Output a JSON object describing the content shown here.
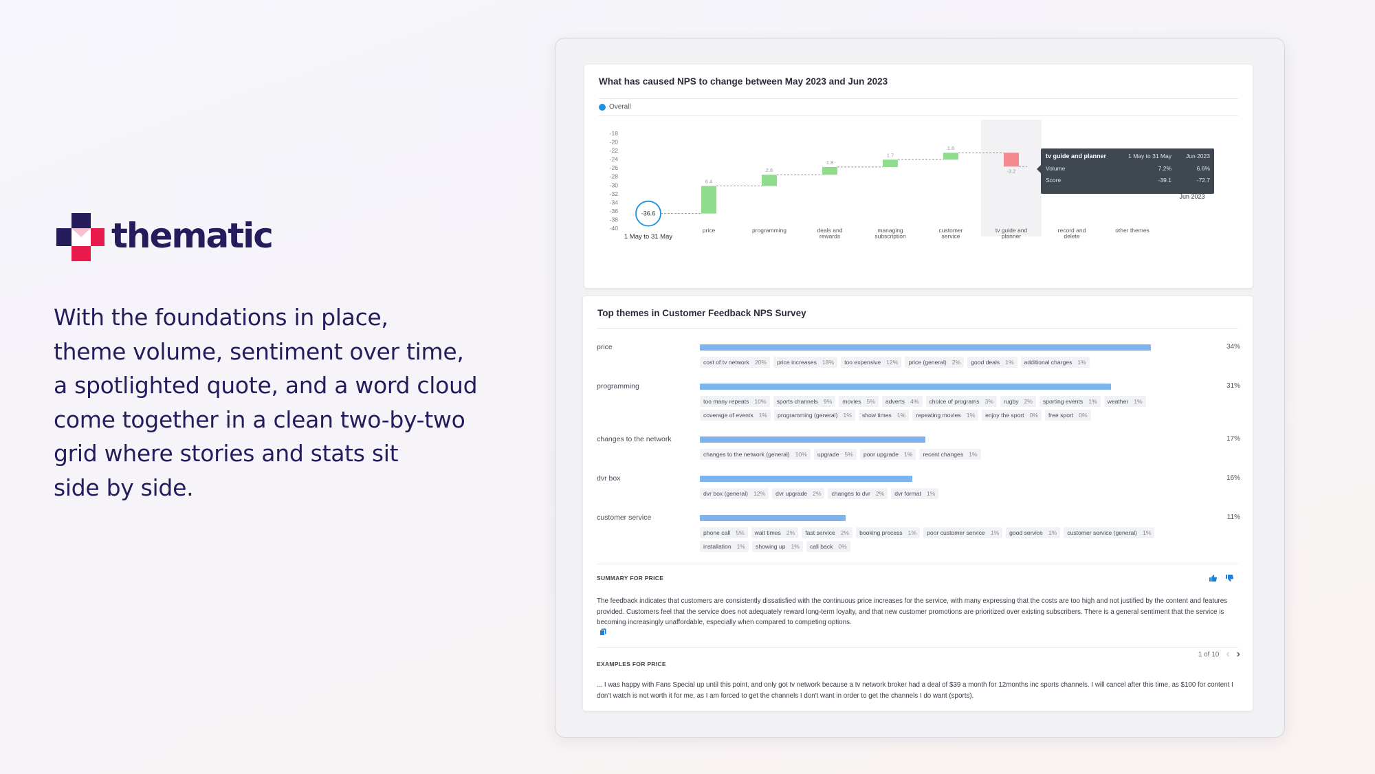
{
  "brand": {
    "name": "thematic",
    "accent": "#251c5c",
    "mark_colors": [
      "#251c5c",
      "#e8194b"
    ]
  },
  "hero": {
    "lines": [
      "With the foundations in place,",
      "theme volume, sentiment over time,",
      "a spotlighted quote, and a word cloud",
      "come together in a clean two-by-two",
      "grid where stories and stats sit",
      "side by side."
    ]
  },
  "nps_card": {
    "title": "What has caused NPS to change between May 2023 and Jun 2023",
    "legend": "Overall",
    "chart_data": {
      "type": "bar",
      "subtype": "waterfall",
      "yticks": [
        -18,
        -20,
        -22,
        -24,
        -26,
        -28,
        -30,
        -32,
        -34,
        -36,
        -38,
        -40
      ],
      "ylim": [
        -40,
        -18
      ],
      "start": {
        "label": "1 May to 31 May",
        "value": -36.6,
        "value_label": "-36.6"
      },
      "end": {
        "label": "Jun 2023"
      },
      "categories": [
        "price",
        "programming",
        "deals and rewards",
        "managing subscription",
        "customer service",
        "tv guide and planner",
        "record and delete",
        "other themes"
      ],
      "changes": [
        6.4,
        2.6,
        1.8,
        1.7,
        1.6,
        -3.2,
        null,
        null
      ],
      "change_labels": [
        "6.4",
        "2.6",
        "1.8",
        "1.7",
        "1.6",
        "-3.2",
        "",
        ""
      ],
      "colors": {
        "positive": "#8fdc8c",
        "negative": "#f4898f",
        "start_circle": "#1f8fe0"
      },
      "highlighted": "tv guide and planner"
    },
    "tooltip": {
      "title": "tv guide and planner",
      "col1": "1 May to 31 May",
      "col2": "Jun 2023",
      "rows": [
        {
          "label": "Volume",
          "v1": "7.2%",
          "v2": "6.6%"
        },
        {
          "label": "Score",
          "v1": "-39.1",
          "v2": "-72.7"
        }
      ]
    }
  },
  "themes_card": {
    "title": "Top themes in Customer Feedback NPS Survey",
    "themes": [
      {
        "name": "price",
        "pct": "34%",
        "value": 34,
        "chips": [
          [
            "cost of tv network",
            "20%"
          ],
          [
            "price increases",
            "18%"
          ],
          [
            "too expensive",
            "12%"
          ],
          [
            "price (general)",
            "2%"
          ],
          [
            "good deals",
            "1%"
          ],
          [
            "additional charges",
            "1%"
          ]
        ]
      },
      {
        "name": "programming",
        "pct": "31%",
        "value": 31,
        "chips": [
          [
            "too many repeats",
            "10%"
          ],
          [
            "sports channels",
            "9%"
          ],
          [
            "movies",
            "5%"
          ],
          [
            "adverts",
            "4%"
          ],
          [
            "choice of programs",
            "3%"
          ],
          [
            "rugby",
            "2%"
          ],
          [
            "sporting events",
            "1%"
          ],
          [
            "weather",
            "1%"
          ],
          [
            "coverage of events",
            "1%"
          ],
          [
            "programming (general)",
            "1%"
          ],
          [
            "show times",
            "1%"
          ],
          [
            "repeating movies",
            "1%"
          ],
          [
            "enjoy the sport",
            "0%"
          ],
          [
            "free sport",
            "0%"
          ]
        ]
      },
      {
        "name": "changes to the network",
        "pct": "17%",
        "value": 17,
        "chips": [
          [
            "changes to the network (general)",
            "10%"
          ],
          [
            "upgrade",
            "5%"
          ],
          [
            "poor upgrade",
            "1%"
          ],
          [
            "recent changes",
            "1%"
          ]
        ]
      },
      {
        "name": "dvr box",
        "pct": "16%",
        "value": 16,
        "chips": [
          [
            "dvr box (general)",
            "12%"
          ],
          [
            "dvr upgrade",
            "2%"
          ],
          [
            "changes to dvr",
            "2%"
          ],
          [
            "dvr format",
            "1%"
          ]
        ]
      },
      {
        "name": "customer service",
        "pct": "11%",
        "value": 11,
        "chips": [
          [
            "phone call",
            "5%"
          ],
          [
            "wait times",
            "2%"
          ],
          [
            "fast service",
            "2%"
          ],
          [
            "booking process",
            "1%"
          ],
          [
            "poor customer service",
            "1%"
          ],
          [
            "good service",
            "1%"
          ],
          [
            "customer service (general)",
            "1%"
          ],
          [
            "installation",
            "1%"
          ],
          [
            "showing up",
            "1%"
          ],
          [
            "call back",
            "0%"
          ]
        ]
      }
    ],
    "summary_label": "SUMMARY FOR PRICE",
    "summary": "The feedback indicates that customers are consistently dissatisfied with the continuous price increases for the service, with many expressing that the costs are too high and not justified by the content and features provided. Customers feel that the service does not adequately reward long-term loyalty, and that new customer promotions are prioritized over existing subscribers. There is a general sentiment that the service is becoming increasingly unaffordable, especially when compared to competing options.",
    "examples_label": "EXAMPLES FOR PRICE",
    "pager": "1 of 10",
    "example": "... I was happy with Fans Special up until this point, and only got tv network because a tv network broker had a deal of $39 a month for 12months inc sports channels. I will cancel after this time, as $100 for content I don't watch is not worth it for me, as I am forced to get the channels I don't want in order to get the channels I do want (sports).",
    "icons": {
      "thumbs_up": "thumbs-up-icon",
      "thumbs_down": "thumbs-down-icon",
      "copy": "copy-icon",
      "prev": "chevron-left-icon",
      "next": "chevron-right-icon"
    }
  }
}
